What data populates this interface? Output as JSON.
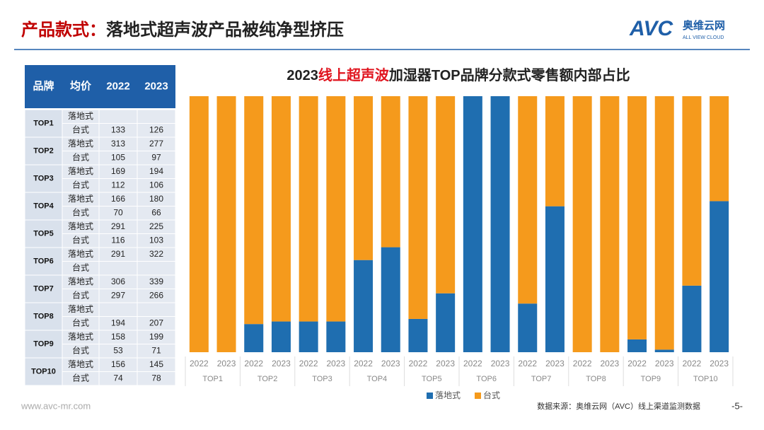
{
  "header": {
    "title": [
      "产品款式：",
      "落地式超声波产品被纯净型挤压"
    ],
    "logo": "AVC",
    "logo_cn": "奥维云网",
    "logo_en": "ALL VIEW CLOUD"
  },
  "table": {
    "columns": [
      "品牌",
      "均价",
      "2022",
      "2023"
    ],
    "groups": [
      {
        "brand": "TOP1",
        "rows": [
          [
            "落地式",
            null,
            null
          ],
          [
            "台式",
            133,
            126
          ]
        ]
      },
      {
        "brand": "TOP2",
        "rows": [
          [
            "落地式",
            313,
            277
          ],
          [
            "台式",
            105,
            97
          ]
        ]
      },
      {
        "brand": "TOP3",
        "rows": [
          [
            "落地式",
            169,
            194
          ],
          [
            "台式",
            112,
            106
          ]
        ]
      },
      {
        "brand": "TOP4",
        "rows": [
          [
            "落地式",
            166,
            180
          ],
          [
            "台式",
            70,
            66
          ]
        ]
      },
      {
        "brand": "TOP5",
        "rows": [
          [
            "落地式",
            291,
            225
          ],
          [
            "台式",
            116,
            103
          ]
        ]
      },
      {
        "brand": "TOP6",
        "rows": [
          [
            "落地式",
            291,
            322
          ],
          [
            "台式",
            null,
            null
          ]
        ]
      },
      {
        "brand": "TOP7",
        "rows": [
          [
            "落地式",
            306,
            339
          ],
          [
            "台式",
            297,
            266
          ]
        ]
      },
      {
        "brand": "TOP8",
        "rows": [
          [
            "落地式",
            null,
            null
          ],
          [
            "台式",
            194,
            207
          ]
        ]
      },
      {
        "brand": "TOP9",
        "rows": [
          [
            "落地式",
            158,
            199
          ],
          [
            "台式",
            53,
            71
          ]
        ]
      },
      {
        "brand": "TOP10",
        "rows": [
          [
            "落地式",
            156,
            145
          ],
          [
            "台式",
            74,
            78
          ]
        ]
      }
    ]
  },
  "chart_data": {
    "type": "bar",
    "stacked": true,
    "title": [
      "2023",
      "线上超声波",
      "加湿器TOP品牌分款式零售额内部占比"
    ],
    "categories": [
      "2022",
      "2023",
      "2022",
      "2023",
      "2022",
      "2023",
      "2022",
      "2023",
      "2022",
      "2023",
      "2022",
      "2023",
      "2022",
      "2023",
      "2022",
      "2023",
      "2022",
      "2023",
      "2022",
      "2023"
    ],
    "groups": [
      "TOP1",
      "TOP2",
      "TOP3",
      "TOP4",
      "TOP5",
      "TOP6",
      "TOP7",
      "TOP8",
      "TOP9",
      "TOP10"
    ],
    "series": [
      {
        "name": "落地式",
        "color": "#1f6eb0",
        "values": [
          0,
          0,
          11,
          12,
          12,
          12,
          36,
          41,
          13,
          23,
          100,
          100,
          19,
          57,
          0,
          0,
          5,
          1,
          26,
          59
        ]
      },
      {
        "name": "台式",
        "color": "#f59a1c",
        "values": [
          100,
          100,
          89,
          88,
          88,
          88,
          64,
          59,
          87,
          77,
          0,
          0,
          81,
          43,
          100,
          100,
          95,
          99,
          74,
          41
        ]
      }
    ]
  },
  "footer": {
    "website": "www.avc-mr.com",
    "source": "数据来源：奥维云网（AVC）线上渠道监测数据",
    "page": "-5-"
  }
}
